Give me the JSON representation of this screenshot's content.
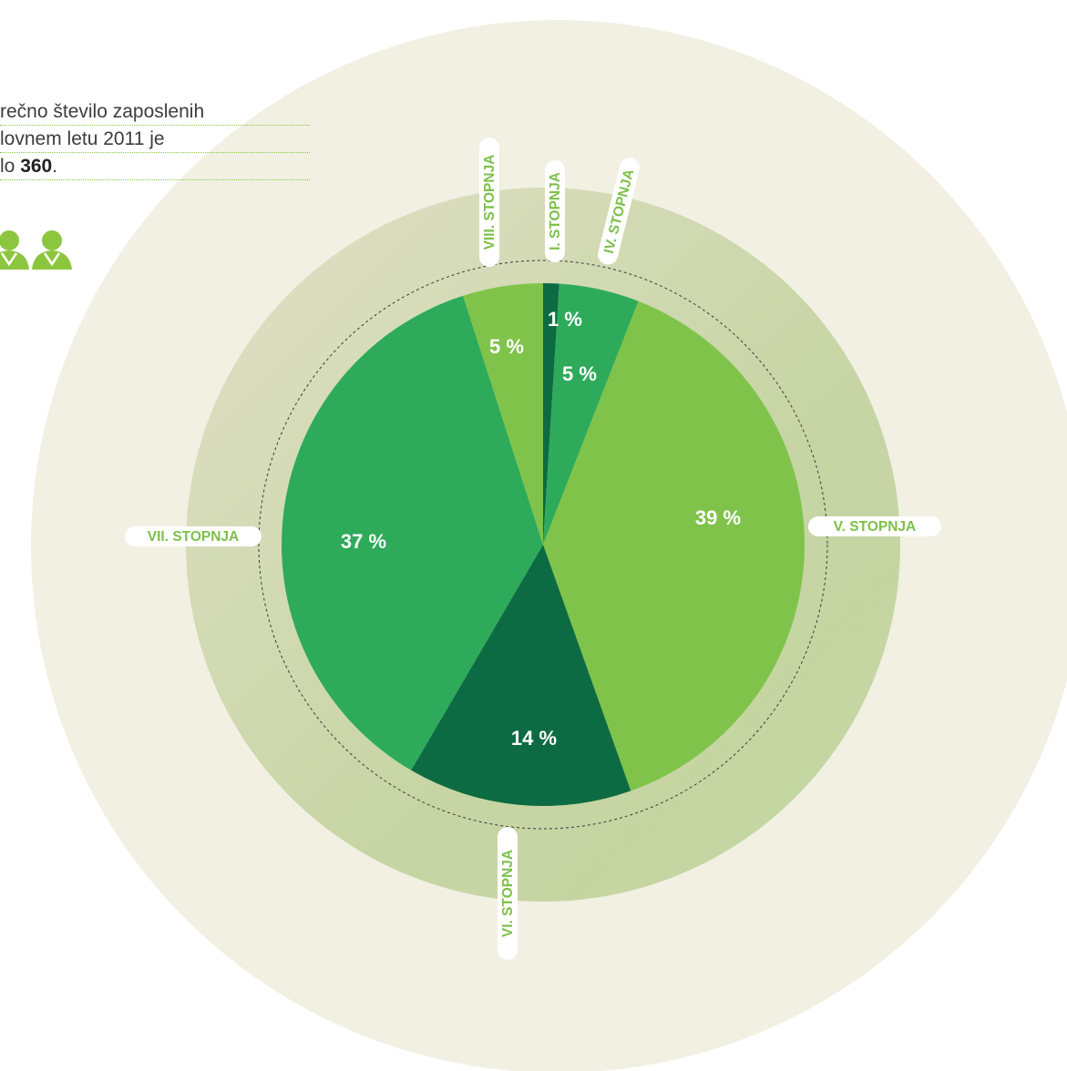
{
  "intro": {
    "line1": "rečno število zaposlenih",
    "line2": "lovnem letu 2011 je",
    "line3_prefix": "lo ",
    "line3_value": "360",
    "line3_suffix": "."
  },
  "icons": [
    "person-icon",
    "person-icon"
  ],
  "colors": {
    "outer_ring": "#f1f0e3",
    "inner_ring": "#d7dcbc",
    "inner_ring_mid": "#c7d4a3",
    "dark_green": "#0d6b43",
    "mid_green": "#2eab5a",
    "light_green": "#80c34b",
    "label_text": "#7cc04a"
  },
  "chart_data": {
    "type": "pie",
    "title": "",
    "slices": [
      {
        "name": "I. STOPNJA",
        "value": 1,
        "label": "1 %",
        "color": "#0d6b43"
      },
      {
        "name": "IV. STOPNJA",
        "value": 5,
        "label": "5 %",
        "color": "#2eab5a"
      },
      {
        "name": "V. STOPNJA",
        "value": 39,
        "label": "39 %",
        "color": "#80c34b"
      },
      {
        "name": "VI. STOPNJA",
        "value": 14,
        "label": "14 %",
        "color": "#0d6b43"
      },
      {
        "name": "VII. STOPNJA",
        "value": 37,
        "label": "37 %",
        "color": "#2eab5a"
      },
      {
        "name": "VIII. STOPNJA",
        "value": 5,
        "label": "5 %",
        "color": "#80c34b"
      }
    ],
    "legend": "labels around the pie"
  }
}
